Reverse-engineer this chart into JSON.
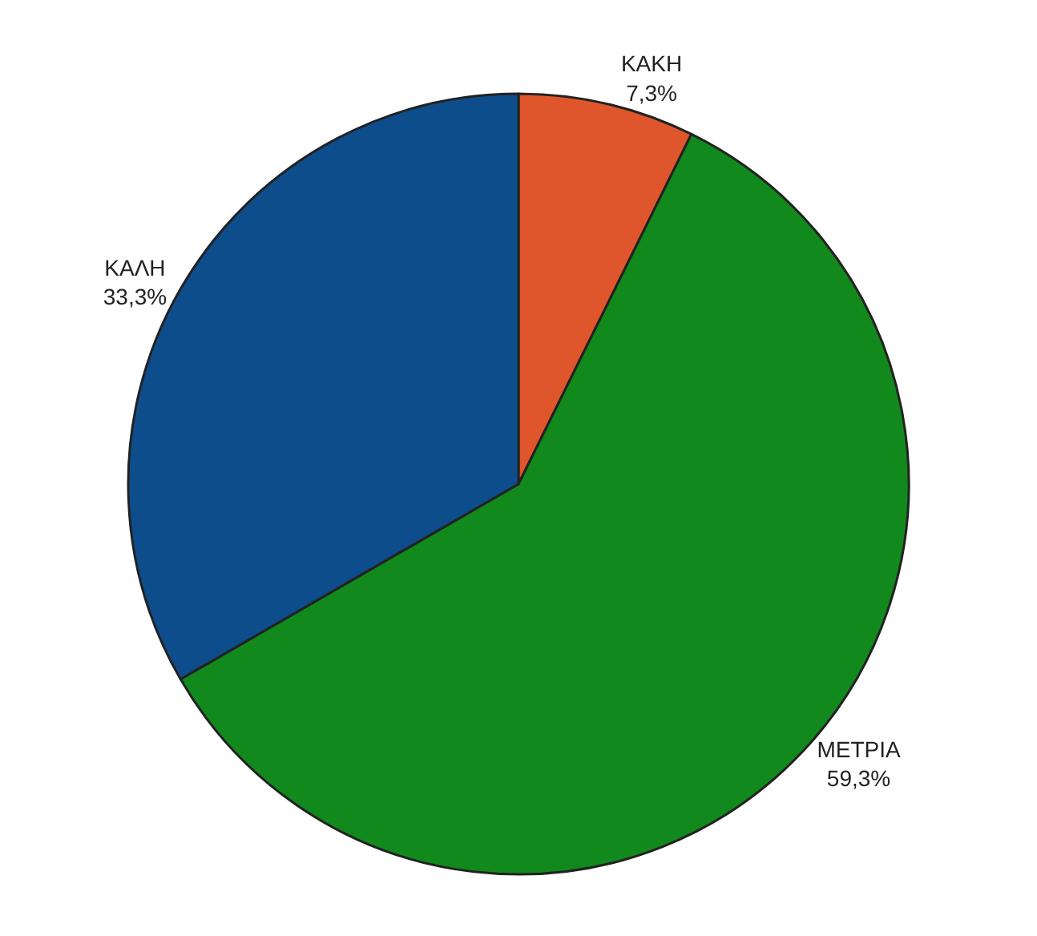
{
  "chart_data": {
    "type": "pie",
    "categories": [
      "ΚΑΚΗ",
      "ΜΕΤΡΙΑ",
      "ΚΑΛΗ"
    ],
    "values": [
      7.3,
      59.3,
      33.3
    ],
    "value_labels": [
      "7,3%",
      "59,3%",
      "33,3%"
    ],
    "colors": [
      "#e0562c",
      "#12891c",
      "#0e4d8c"
    ],
    "legend": false
  }
}
